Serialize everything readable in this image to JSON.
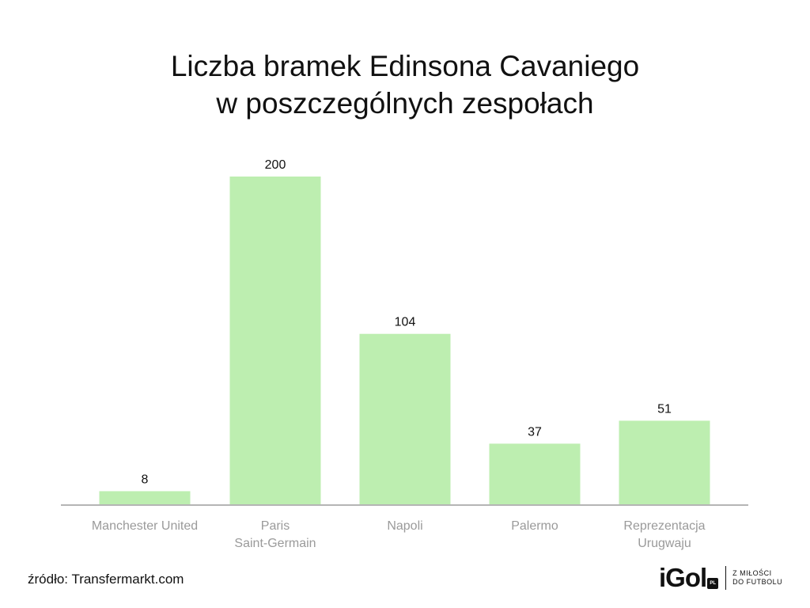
{
  "chart_data": {
    "type": "bar",
    "title_lines": [
      "Liczba bramek Edinsona Cavaniego",
      "w poszczególnych zespołach"
    ],
    "categories": [
      [
        "Manchester United"
      ],
      [
        "Paris",
        "Saint-Germain"
      ],
      [
        "Napoli"
      ],
      [
        "Palermo"
      ],
      [
        "Reprezentacja",
        "Urugwaju"
      ]
    ],
    "values": [
      8,
      200,
      104,
      37,
      51
    ],
    "ylim": [
      0,
      200
    ],
    "grid": false,
    "legend": "none",
    "xlabel": "",
    "ylabel": "",
    "colors": {
      "bar": "#bdeeb0",
      "axis": "#b5b5b5",
      "value_label": "#111111",
      "category_label": "#9a9a9a"
    }
  },
  "footer": {
    "source": "źródło: Transfermarkt.com",
    "logo": {
      "mark": "iGol",
      "badge": "PL",
      "tagline": [
        "Z MIŁOŚCI",
        "DO FUTBOLU"
      ]
    }
  }
}
